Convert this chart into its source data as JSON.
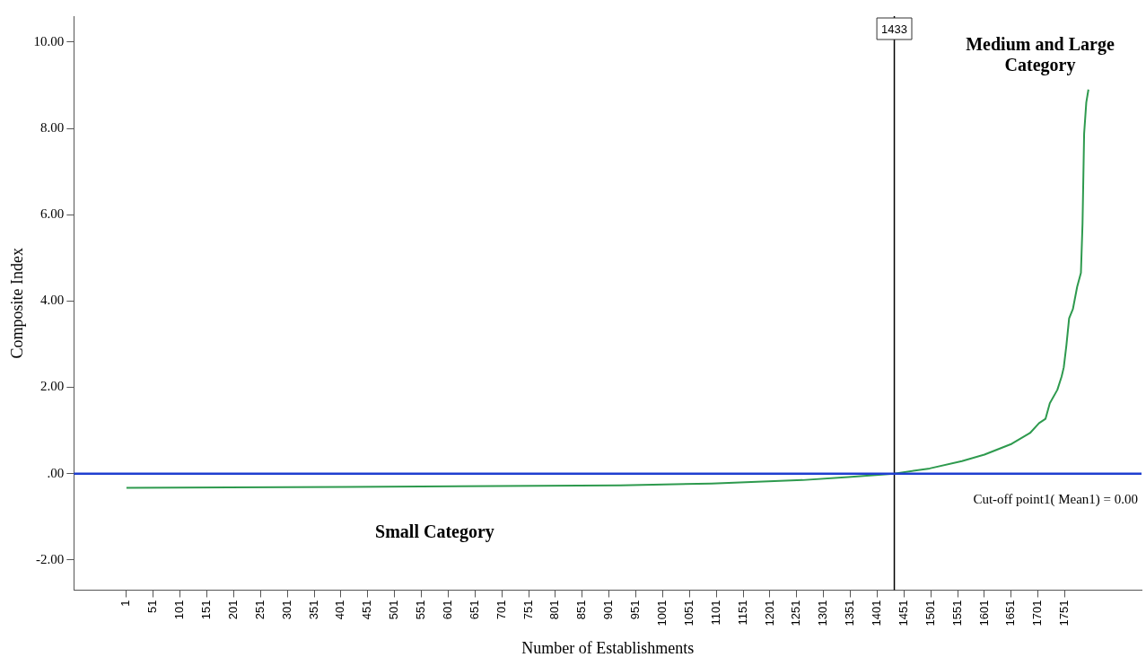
{
  "chart_data": {
    "type": "line",
    "xlabel": "Number of Establishments",
    "ylabel": "Composite Index",
    "series": [
      {
        "color": "#2e9a4e",
        "x": [
          1,
          412,
          922,
          1092,
          1262,
          1347,
          1433,
          1499,
          1559,
          1601,
          1652,
          1686,
          1703,
          1715,
          1723,
          1737,
          1745,
          1749,
          1754,
          1759,
          1766,
          1774,
          1781,
          1784,
          1787,
          1791,
          1795
        ],
        "values": [
          -0.33,
          -0.31,
          -0.27,
          -0.23,
          -0.15,
          -0.08,
          0,
          0.12,
          0.29,
          0.44,
          0.69,
          0.94,
          1.17,
          1.27,
          1.63,
          1.94,
          2.25,
          2.46,
          2.98,
          3.6,
          3.81,
          4.33,
          4.65,
          5.79,
          7.88,
          8.6,
          8.9
        ]
      }
    ],
    "xlim": [
      -97,
      1894
    ],
    "xticks": [
      1,
      51,
      101,
      151,
      201,
      251,
      301,
      351,
      401,
      451,
      501,
      551,
      601,
      651,
      701,
      751,
      801,
      851,
      901,
      951,
      1001,
      1051,
      1101,
      1151,
      1201,
      1251,
      1301,
      1351,
      1401,
      1451,
      1501,
      1551,
      1601,
      1651,
      1701,
      1751
    ],
    "ylim": [
      -2.7,
      10.6
    ],
    "yticks": [
      {
        "value": -2,
        "label": "-2.00"
      },
      {
        "value": 0,
        "label": ".00"
      },
      {
        "value": 2,
        "label": "2.00"
      },
      {
        "value": 4,
        "label": "4.00"
      },
      {
        "value": 6,
        "label": "6.00"
      },
      {
        "value": 8,
        "label": "8.00"
      },
      {
        "value": 10,
        "label": "10.00"
      }
    ],
    "grid": false,
    "legend": false,
    "ref_lines": [
      {
        "axis": "x",
        "value": 1433,
        "label": "1433",
        "color": "#000000"
      },
      {
        "axis": "y",
        "value": 0,
        "label": "Cut-off point1( Mean1) = 0.00",
        "color": "#1f3fd0"
      }
    ],
    "annotations": [
      "Medium and Large Category",
      "Small Category"
    ]
  }
}
